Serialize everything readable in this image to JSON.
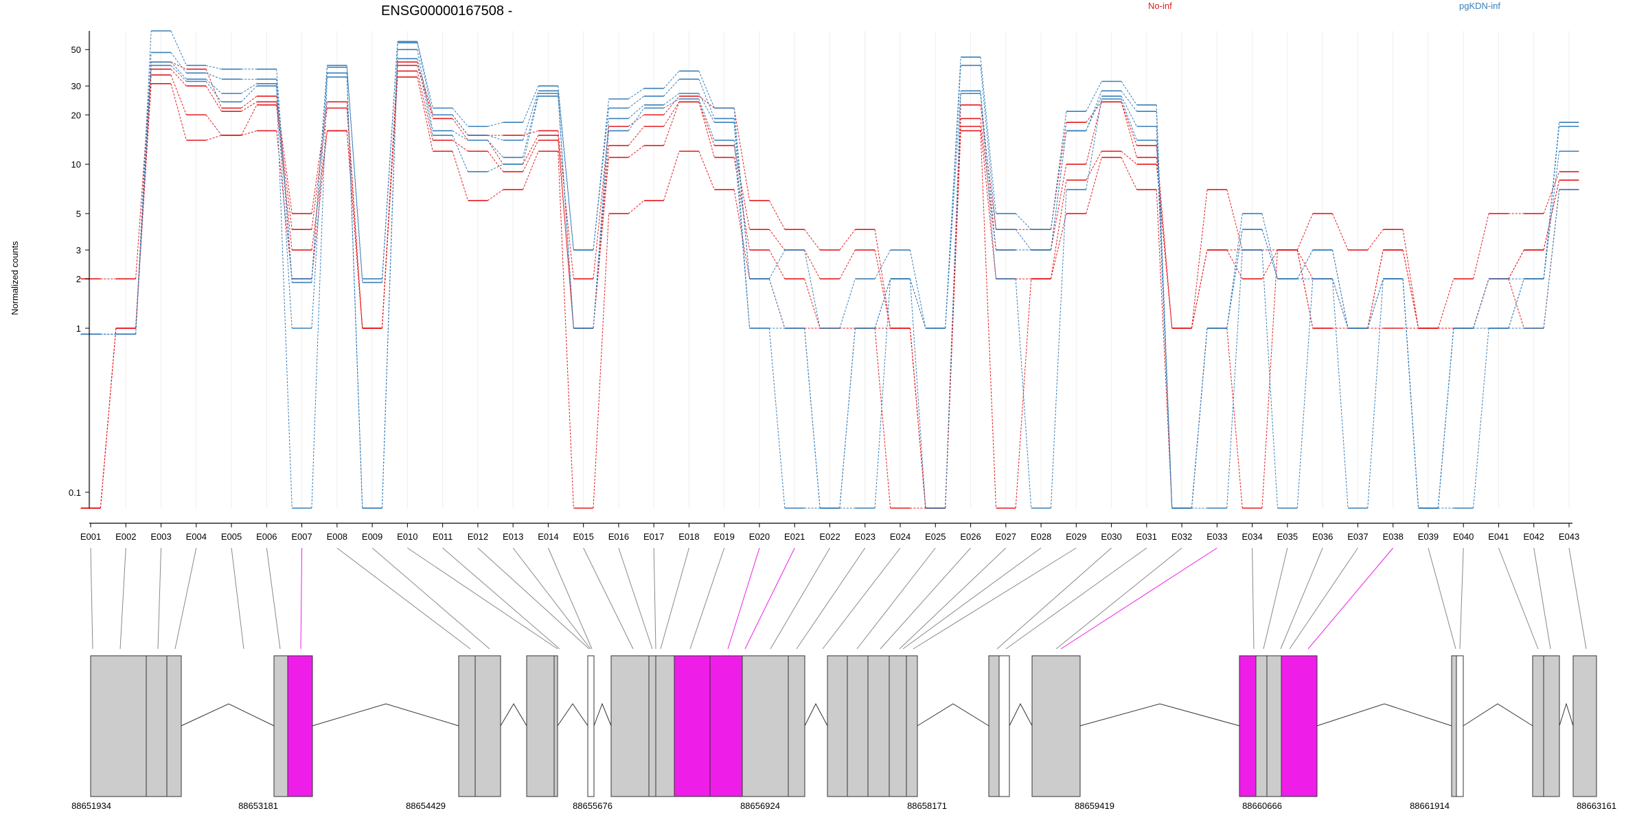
{
  "chart_data": {
    "type": "line",
    "title": "ENSG00000167508 -",
    "xlabel": "",
    "ylabel": "Normalized counts",
    "yscale": "log",
    "ylim": [
      0.08,
      65
    ],
    "yticks": [
      0.1,
      1,
      2,
      3,
      5,
      10,
      20,
      30,
      50
    ],
    "ytick_labels": [
      "0.1",
      "1",
      "2",
      "3",
      "5",
      "10",
      "20",
      "30",
      "50"
    ],
    "categories": [
      "E001",
      "E002",
      "E003",
      "E004",
      "E005",
      "E006",
      "E007",
      "E008",
      "E009",
      "E010",
      "E011",
      "E012",
      "E013",
      "E014",
      "E015",
      "E016",
      "E017",
      "E018",
      "E019",
      "E020",
      "E021",
      "E022",
      "E023",
      "E024",
      "E025",
      "E026",
      "E027",
      "E028",
      "E029",
      "E030",
      "E031",
      "E032",
      "E033",
      "E034",
      "E035",
      "E036",
      "E037",
      "E038",
      "E039",
      "E040",
      "E041",
      "E042",
      "E043"
    ],
    "legend": [
      {
        "name": "No-inf",
        "color": "#e41a1c"
      },
      {
        "name": "pgKDN-inf",
        "color": "#377eb8"
      }
    ],
    "series": [
      {
        "name": "No-inf",
        "color": "#e41a1c",
        "values": [
          2,
          2,
          42,
          38,
          22,
          26,
          5,
          24,
          1,
          42,
          20,
          15,
          15,
          16,
          2,
          17,
          20,
          26,
          22,
          6,
          4,
          3,
          4,
          1,
          0.08,
          23,
          4,
          4,
          18,
          24,
          13,
          1,
          7,
          3,
          3,
          5,
          3,
          4,
          1,
          2,
          5,
          5,
          9
        ]
      },
      {
        "name": "No-inf",
        "color": "#e41a1c",
        "values": [
          0.08,
          1,
          38,
          30,
          21,
          24,
          4,
          22,
          1,
          40,
          19,
          14,
          10,
          15,
          1,
          13,
          17,
          24,
          13,
          4,
          3,
          2,
          3,
          1,
          0.08,
          19,
          3,
          3,
          10,
          24,
          11,
          1,
          3,
          3,
          3,
          2,
          1,
          3,
          1,
          1,
          2,
          3,
          8
        ]
      },
      {
        "name": "No-inf",
        "color": "#e41a1c",
        "values": [
          0.08,
          1,
          35,
          20,
          15,
          23,
          3,
          16,
          1,
          37,
          14,
          12,
          9,
          14,
          1,
          11,
          13,
          24,
          11,
          3,
          2,
          1,
          1,
          1,
          0.08,
          17,
          2,
          2,
          8,
          12,
          10,
          1,
          3,
          2,
          3,
          1,
          1,
          3,
          1,
          1,
          2,
          3,
          8
        ]
      },
      {
        "name": "No-inf",
        "color": "#e41a1c",
        "values": [
          0.08,
          1,
          31,
          14,
          15,
          16,
          2,
          16,
          1,
          34,
          12,
          6,
          7,
          12,
          0.08,
          5,
          6,
          12,
          7,
          2,
          1,
          1,
          1,
          0.08,
          0.08,
          16,
          0.08,
          2,
          5,
          11,
          7,
          0.08,
          1,
          0.08,
          3,
          1,
          1,
          1,
          1,
          1,
          2,
          1,
          7
        ]
      },
      {
        "name": "pgKDN-inf",
        "color": "#377eb8",
        "values": [
          0.92,
          0.92,
          65,
          40,
          38,
          38,
          2,
          40,
          2,
          56,
          22,
          17,
          18,
          30,
          3,
          25,
          29,
          37,
          22,
          2,
          3,
          1,
          2,
          3,
          1,
          45,
          5,
          4,
          21,
          32,
          23,
          0.08,
          1,
          5,
          2,
          3,
          1,
          2,
          0.08,
          1,
          2,
          2,
          18
        ]
      },
      {
        "name": "pgKDN-inf",
        "color": "#377eb8",
        "values": [
          0.92,
          0.92,
          48,
          36,
          33,
          33,
          1.9,
          39,
          1.9,
          55,
          20,
          15,
          14,
          28,
          3,
          22,
          26,
          33,
          19,
          2,
          1,
          0.08,
          1,
          2,
          1,
          40,
          4,
          3,
          16,
          28,
          21,
          0.08,
          1,
          4,
          2,
          3,
          1,
          2,
          0.08,
          1,
          1,
          2,
          17
        ]
      },
      {
        "name": "pgKDN-inf",
        "color": "#377eb8",
        "values": [
          0.92,
          0.92,
          42,
          33,
          27,
          31,
          1,
          36,
          0.08,
          50,
          16,
          14,
          11,
          27,
          1,
          19,
          23,
          27,
          18,
          1,
          1,
          0.08,
          1,
          2,
          1,
          28,
          3,
          3,
          16,
          26,
          17,
          0.08,
          1,
          4,
          2,
          2,
          1,
          2,
          0.08,
          1,
          1,
          2,
          12
        ]
      },
      {
        "name": "pgKDN-inf",
        "color": "#377eb8",
        "values": [
          0.92,
          0.92,
          40,
          32,
          24,
          30,
          0.08,
          34,
          0.08,
          44,
          15,
          9,
          10,
          26,
          1,
          16,
          22,
          25,
          14,
          1,
          0.08,
          0.08,
          0.08,
          2,
          0.08,
          27,
          2,
          0.08,
          7,
          25,
          14,
          0.08,
          0.08,
          3,
          0.08,
          2,
          0.08,
          2,
          0.08,
          0.08,
          1,
          1,
          7
        ]
      }
    ],
    "genomic_axis_labels": [
      "88651934",
      "88653181",
      "88654429",
      "88655676",
      "88656924",
      "88658171",
      "88659419",
      "88660666",
      "88661914",
      "88663161"
    ],
    "highlighted_exons": [
      "E007",
      "E020",
      "E021",
      "E033",
      "E038"
    ],
    "highlight_color": "#ee1ee8",
    "exon_color": "#cccccc"
  }
}
